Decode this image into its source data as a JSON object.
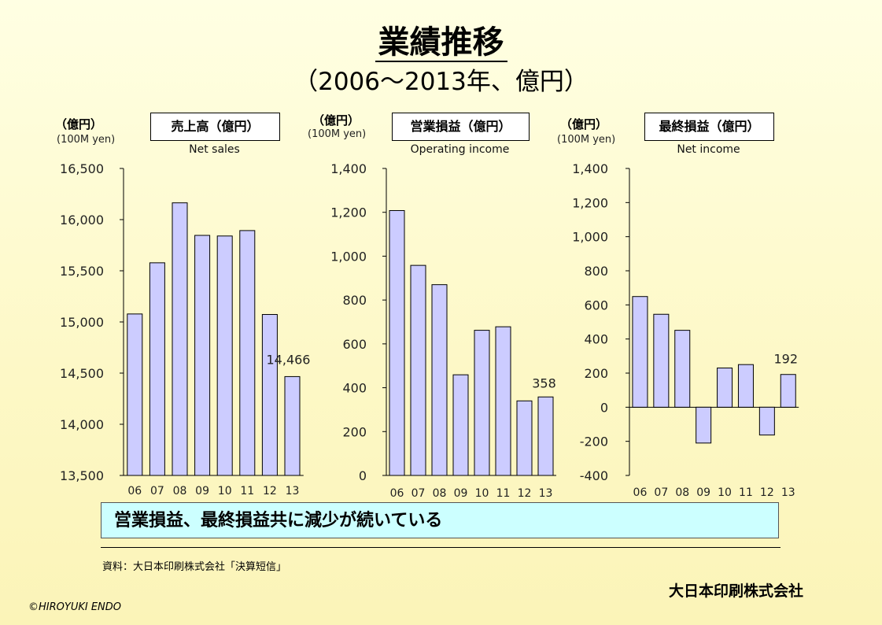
{
  "title": "業績推移",
  "subtitle": "（2006～2013年、億円）",
  "summary": "営業損益、最終損益共に減少が続いている",
  "source": "資料：大日本印刷株式会社「決算短信」",
  "company": "大日本印刷株式会社",
  "copyright": "©HIROYUKI ENDO",
  "colors": {
    "bar_fill": "#ccccff",
    "bar_stroke": "#000000",
    "summary_bg": "#ccffff"
  },
  "chart_data": [
    {
      "type": "bar",
      "title": "売上高（億円）",
      "subtitle": "Net sales",
      "ylabel": "（億円）",
      "ylabel_en": "(100M yen)",
      "categories": [
        "06",
        "07",
        "08",
        "09",
        "10",
        "11",
        "12",
        "13"
      ],
      "values": [
        15078,
        15578,
        16164,
        15846,
        15840,
        15893,
        15073,
        14466
      ],
      "ylim": [
        13500,
        16500
      ],
      "yticks": [
        13500,
        14000,
        14500,
        15000,
        15500,
        16000,
        16500
      ],
      "ytick_labels": [
        "13,500",
        "14,000",
        "14,500",
        "15,000",
        "15,500",
        "16,000",
        "16,500"
      ],
      "data_label": "14,466",
      "data_label_index": 7,
      "grid": false
    },
    {
      "type": "bar",
      "title": "営業損益（億円）",
      "subtitle": "Operating income",
      "ylabel": "（億円）",
      "ylabel_en": "(100M yen)",
      "categories": [
        "06",
        "07",
        "08",
        "09",
        "10",
        "11",
        "12",
        "13"
      ],
      "values": [
        1208,
        958,
        870,
        459,
        662,
        678,
        340,
        358
      ],
      "ylim": [
        0,
        1400
      ],
      "yticks": [
        0,
        200,
        400,
        600,
        800,
        1000,
        1200,
        1400
      ],
      "ytick_labels": [
        "0",
        "200",
        "400",
        "600",
        "800",
        "1,000",
        "1,200",
        "1,400"
      ],
      "data_label": "358",
      "data_label_index": 7,
      "grid": false
    },
    {
      "type": "bar",
      "title": "最終損益（億円）",
      "subtitle": "Net income",
      "ylabel": "（億円）",
      "ylabel_en": "(100M yen)",
      "categories": [
        "06",
        "07",
        "08",
        "09",
        "10",
        "11",
        "12",
        "13"
      ],
      "values": [
        649,
        545,
        451,
        -210,
        230,
        250,
        -163,
        192
      ],
      "ylim": [
        -400,
        1400
      ],
      "yticks": [
        -400,
        -200,
        0,
        200,
        400,
        600,
        800,
        1000,
        1200,
        1400
      ],
      "ytick_labels": [
        "-400",
        "-200",
        "0",
        "200",
        "400",
        "600",
        "800",
        "1,000",
        "1,200",
        "1,400"
      ],
      "data_label": "192",
      "data_label_index": 7,
      "grid": false
    }
  ]
}
